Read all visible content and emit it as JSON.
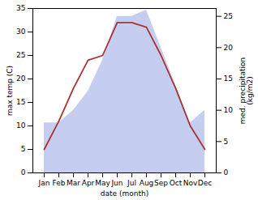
{
  "chart_data": {
    "type": "line",
    "categories": [
      "Jan",
      "Feb",
      "Mar",
      "Apr",
      "May",
      "Jun",
      "Jul",
      "Aug",
      "Sep",
      "Oct",
      "Nov",
      "Dec"
    ],
    "series": [
      {
        "type": "area",
        "axis": "y2",
        "color": "#c5cdf0",
        "values": [
          8,
          8,
          10,
          13,
          18,
          25,
          25,
          26,
          20,
          14,
          8,
          10
        ]
      },
      {
        "type": "line",
        "color": "#aa3333",
        "values": [
          5,
          11,
          18,
          24,
          25,
          32,
          32,
          31,
          25,
          18,
          10,
          5
        ]
      }
    ],
    "xlabel": "date (month)",
    "ylabel": "max temp (C)",
    "y2label": "med. precipitation\n(kg/m2)",
    "ylim": [
      0,
      35
    ],
    "yticks": [
      0,
      5,
      10,
      15,
      20,
      25,
      30,
      35
    ],
    "y2lim": [
      0,
      26.25
    ],
    "y2ticks": [
      0,
      5,
      10,
      15,
      20,
      25
    ]
  }
}
